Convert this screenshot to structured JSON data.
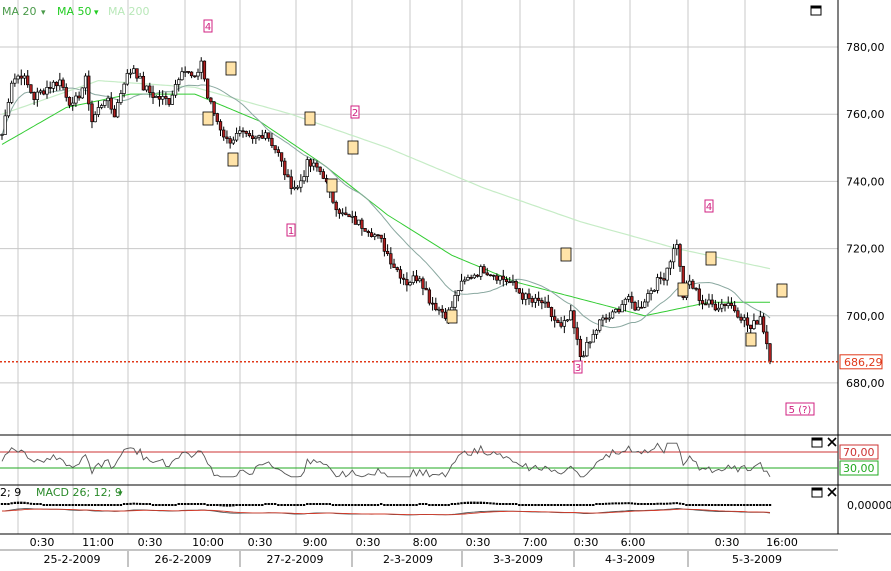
{
  "indicators": [
    {
      "label": "MA 20",
      "color": "#4a9a4a"
    },
    {
      "label": "MA 50",
      "color": "#22cc22"
    },
    {
      "label": "MA 200",
      "color": "#b9e8b9"
    }
  ],
  "caret": "▾",
  "price_axis": {
    "ticks": [
      {
        "label": "780,00",
        "v": 780
      },
      {
        "label": "760,00",
        "v": 760
      },
      {
        "label": "740,00",
        "v": 740
      },
      {
        "label": "720,00",
        "v": 720
      },
      {
        "label": "700,00",
        "v": 700
      },
      {
        "label": "680,00",
        "v": 680
      }
    ],
    "ylim": [
      664.5,
      794
    ]
  },
  "last_price": {
    "label": "686,29",
    "value": 686.29,
    "color": "#e0391a"
  },
  "rsi": {
    "levels": [
      {
        "label": "70,00",
        "v": 70
      },
      {
        "label": "30,00",
        "v": 30
      }
    ]
  },
  "macd": {
    "label_prefix": "2; 9",
    "label": "MACD 26; 12; 9",
    "zero_label": "0,00000"
  },
  "time_axis": {
    "times": [
      "0:30",
      "11:00",
      "0:30",
      "10:00",
      "0:30",
      "9:00",
      "0:30",
      "8:00",
      "0:30",
      "7:00",
      "0:30",
      "6:00",
      "0:30",
      "16:00"
    ],
    "dates": [
      "25-2-2009",
      "26-2-2009",
      "27-2-2009",
      "2-3-2009",
      "3-3-2009",
      "4-3-2009",
      "5-3-2009"
    ]
  },
  "wave_labels": [
    "4",
    "2",
    "1",
    "3",
    "4",
    "5 (?)"
  ],
  "colors": {
    "up": "#ffffff",
    "down": "#b02020",
    "grid": "#c8c8c8",
    "bg": "#ffffff",
    "rsi_band": "#cc3333",
    "rsi_low": "#22aa22"
  },
  "chart_data": {
    "type": "candlestick",
    "series": [
      {
        "name": "MA 20"
      },
      {
        "name": "MA 50"
      },
      {
        "name": "MA 200"
      }
    ],
    "close_anchors": [
      [
        0,
        754
      ],
      [
        3,
        770
      ],
      [
        6,
        772
      ],
      [
        10,
        765
      ],
      [
        14,
        768
      ],
      [
        18,
        770
      ],
      [
        22,
        762
      ],
      [
        26,
        770
      ],
      [
        28,
        758
      ],
      [
        32,
        765
      ],
      [
        35,
        760
      ],
      [
        38,
        770
      ],
      [
        41,
        774
      ],
      [
        44,
        768
      ],
      [
        48,
        765
      ],
      [
        52,
        764
      ],
      [
        56,
        774
      ],
      [
        60,
        770
      ],
      [
        62,
        776
      ],
      [
        64,
        765
      ],
      [
        67,
        758
      ],
      [
        70,
        752
      ],
      [
        74,
        754
      ],
      [
        78,
        752
      ],
      [
        82,
        755
      ],
      [
        86,
        748
      ],
      [
        89,
        740
      ],
      [
        92,
        738
      ],
      [
        95,
        745
      ],
      [
        98,
        744
      ],
      [
        100,
        742
      ],
      [
        102,
        736
      ],
      [
        106,
        730
      ],
      [
        110,
        728
      ],
      [
        114,
        726
      ],
      [
        118,
        722
      ],
      [
        122,
        715
      ],
      [
        126,
        710
      ],
      [
        130,
        712
      ],
      [
        133,
        705
      ],
      [
        136,
        702
      ],
      [
        139,
        700
      ],
      [
        142,
        708
      ],
      [
        146,
        712
      ],
      [
        150,
        714
      ],
      [
        154,
        712
      ],
      [
        158,
        710
      ],
      [
        162,
        706
      ],
      [
        165,
        704
      ],
      [
        168,
        704
      ],
      [
        171,
        700
      ],
      [
        174,
        696
      ],
      [
        177,
        700
      ],
      [
        180,
        688
      ],
      [
        183,
        692
      ],
      [
        186,
        698
      ],
      [
        190,
        700
      ],
      [
        194,
        705
      ],
      [
        198,
        702
      ],
      [
        202,
        708
      ],
      [
        206,
        712
      ],
      [
        210,
        722
      ],
      [
        212,
        706
      ],
      [
        214,
        710
      ],
      [
        218,
        704
      ],
      [
        222,
        703
      ],
      [
        226,
        704
      ],
      [
        230,
        700
      ],
      [
        233,
        696
      ],
      [
        236,
        700
      ],
      [
        239,
        688
      ]
    ],
    "ma200_anchors": [
      [
        0,
        760
      ],
      [
        30,
        770
      ],
      [
        60,
        768
      ],
      [
        90,
        760
      ],
      [
        120,
        750
      ],
      [
        150,
        738
      ],
      [
        180,
        728
      ],
      [
        210,
        720
      ],
      [
        239,
        714
      ]
    ],
    "ma50_anchors": [
      [
        0,
        751
      ],
      [
        20,
        762
      ],
      [
        40,
        766
      ],
      [
        60,
        766
      ],
      [
        80,
        758
      ],
      [
        100,
        745
      ],
      [
        120,
        730
      ],
      [
        140,
        718
      ],
      [
        160,
        710
      ],
      [
        180,
        705
      ],
      [
        200,
        700
      ],
      [
        220,
        704
      ],
      [
        239,
        704
      ]
    ],
    "rsi_range": [
      0,
      100
    ],
    "last_price": 686.29
  }
}
